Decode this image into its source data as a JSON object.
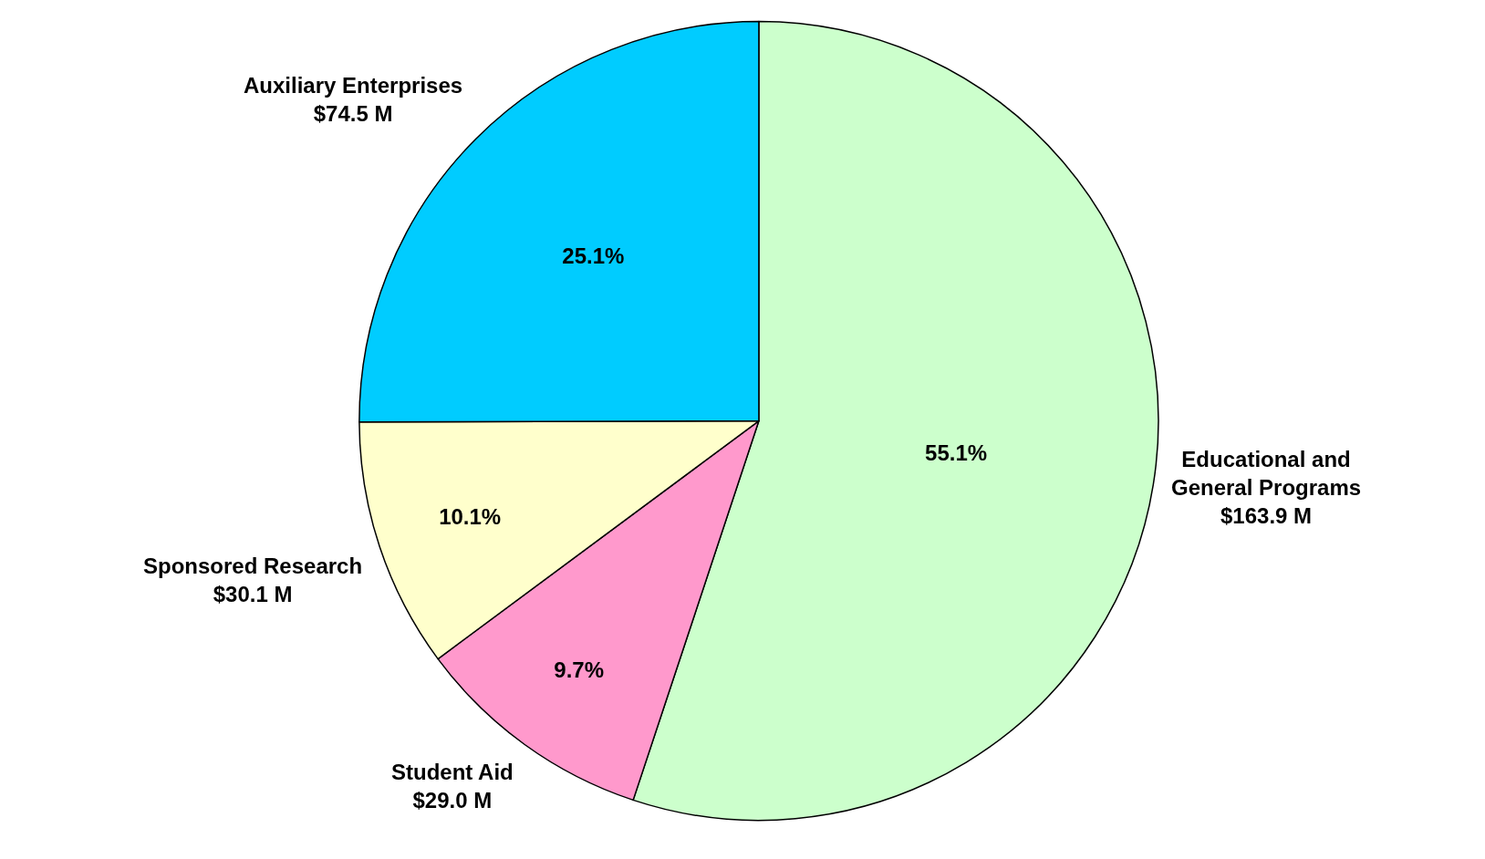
{
  "chart_data": {
    "type": "pie",
    "categories": [
      "Educational and General Programs",
      "Student Aid",
      "Sponsored Research",
      "Auxiliary Enterprises"
    ],
    "values": [
      163.9,
      29.0,
      30.1,
      74.5
    ],
    "value_labels": [
      "$163.9 M",
      "$29.0 M",
      "$30.1 M",
      "$74.5 M"
    ],
    "colors": [
      "#ccffcc",
      "#ff99cc",
      "#ffffcc",
      "#00ccff"
    ],
    "annotations": [
      "55.1%",
      "9.7%",
      "10.1%",
      "25.1%"
    ]
  }
}
